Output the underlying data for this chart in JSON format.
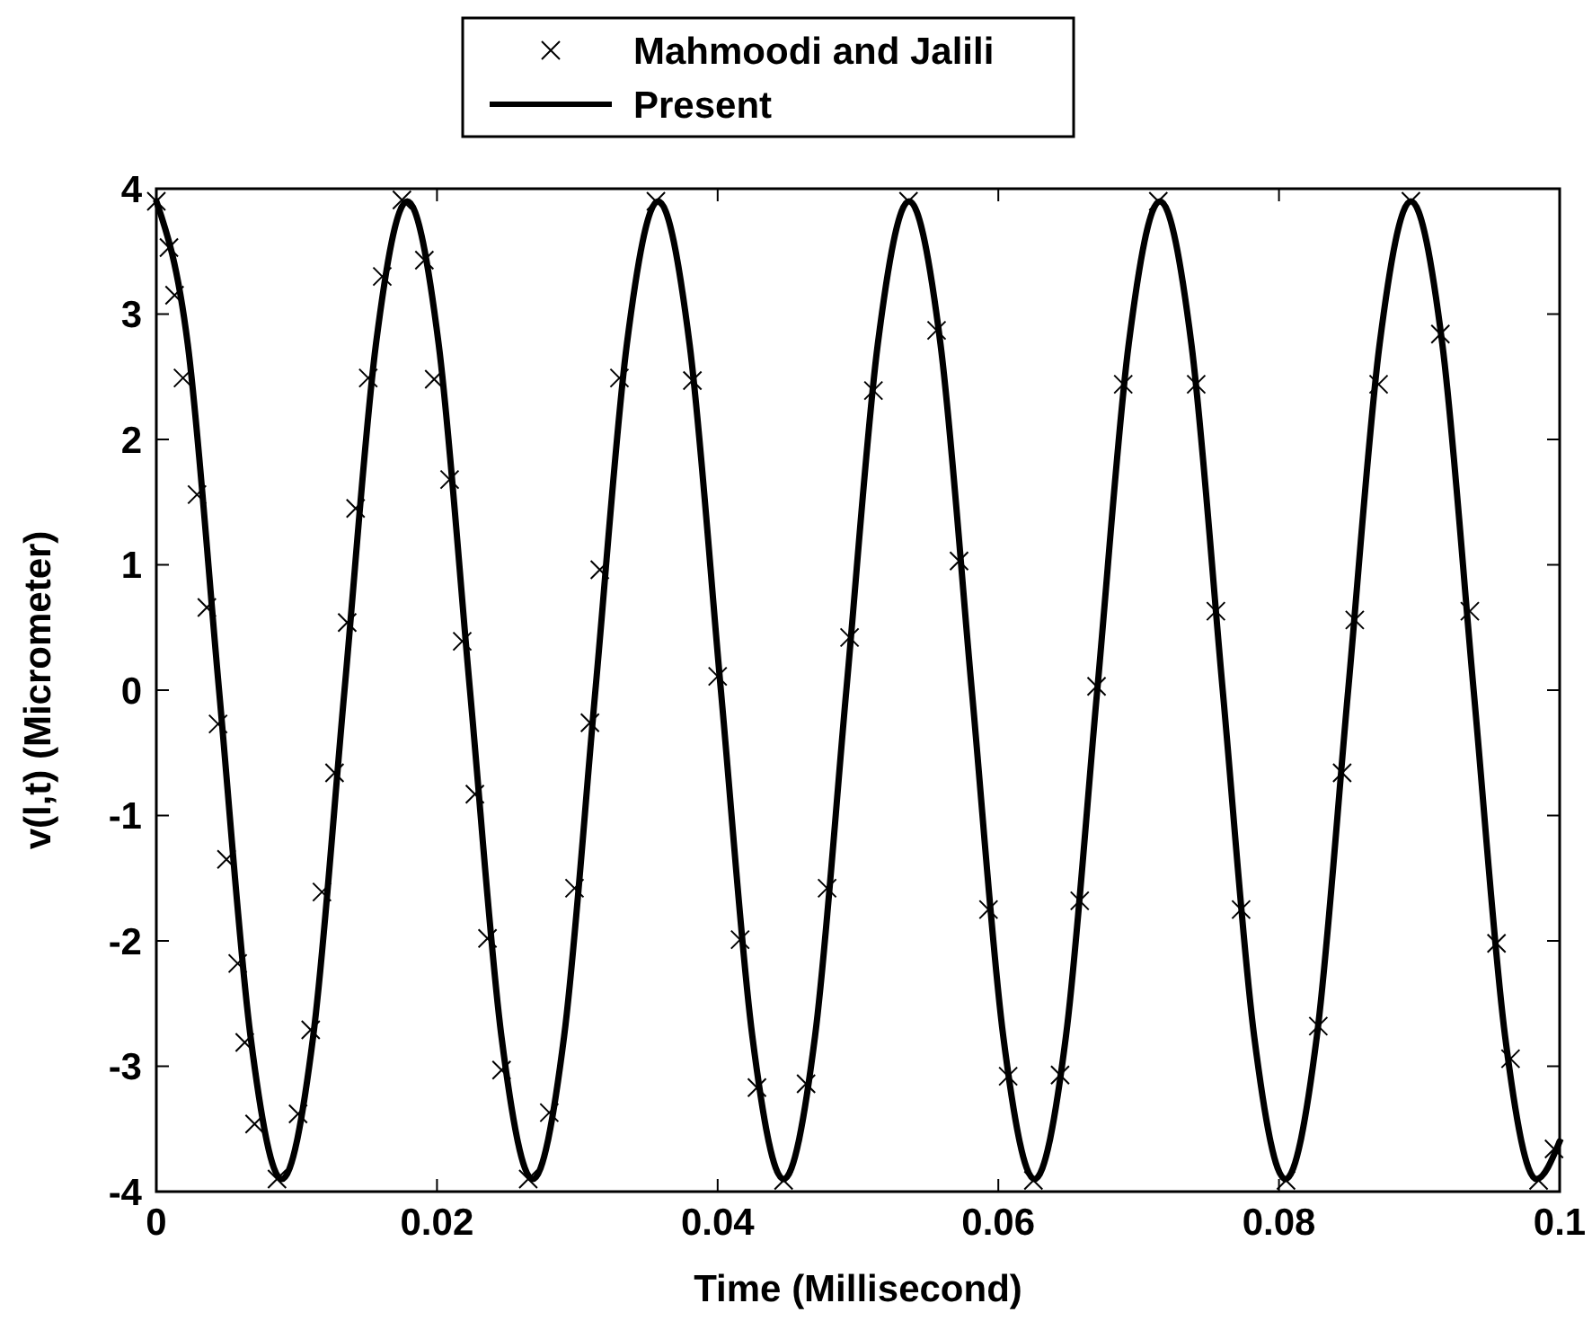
{
  "chart_data": {
    "type": "line",
    "xlabel": "Time (Millisecond)",
    "ylabel": "v(l,t) (Micrometer)",
    "xlim": [
      0,
      0.1
    ],
    "xticks": [
      0,
      0.02,
      0.04,
      0.06,
      0.08,
      0.1
    ],
    "ylim": [
      -4,
      4
    ],
    "yticks": [
      -4,
      -3,
      -2,
      -1,
      0,
      1,
      2,
      3,
      4
    ],
    "grid": false,
    "legend": "top",
    "series": [
      {
        "name": "Mahmoodi and Jalili",
        "type": "scatter",
        "marker": "cross",
        "color": "#000000",
        "x": [
          0,
          0.0009,
          0.0013,
          0.0019,
          0.0029,
          0.0036,
          0.0044,
          0.005,
          0.0058,
          0.0063,
          0.007,
          0.0086,
          0.0101,
          0.011,
          0.0118,
          0.0127,
          0.0136,
          0.0142,
          0.0151,
          0.0161,
          0.0175,
          0.0191,
          0.0198,
          0.0209,
          0.0218,
          0.0227,
          0.0236,
          0.0246,
          0.0265,
          0.028,
          0.0298,
          0.0309,
          0.0316,
          0.033,
          0.0356,
          0.0382,
          0.04,
          0.0416,
          0.0428,
          0.0447,
          0.0463,
          0.0478,
          0.0494,
          0.0511,
          0.0536,
          0.0556,
          0.0572,
          0.0593,
          0.0607,
          0.0625,
          0.0644,
          0.0658,
          0.067,
          0.0689,
          0.0714,
          0.0741,
          0.0755,
          0.0773,
          0.0805,
          0.0828,
          0.0845,
          0.0854,
          0.0871,
          0.0894,
          0.0915,
          0.0936,
          0.0955,
          0.0965,
          0.0985,
          0.0996
        ],
        "values": [
          3.9,
          3.53,
          3.15,
          2.49,
          1.56,
          0.66,
          -0.27,
          -1.35,
          -2.18,
          -2.81,
          -3.46,
          -3.9,
          -3.38,
          -2.71,
          -1.61,
          -0.66,
          0.54,
          1.45,
          2.49,
          3.3,
          3.91,
          3.43,
          2.48,
          1.68,
          0.39,
          -0.83,
          -1.98,
          -3.03,
          -3.9,
          -3.37,
          -1.58,
          -0.26,
          0.96,
          2.49,
          3.9,
          2.47,
          0.11,
          -1.99,
          -3.17,
          -3.91,
          -3.14,
          -1.58,
          0.42,
          2.39,
          3.9,
          2.87,
          1.03,
          -1.75,
          -3.08,
          -3.91,
          -3.07,
          -1.68,
          0.03,
          2.44,
          3.9,
          2.44,
          0.63,
          -1.75,
          -3.91,
          -2.68,
          -0.66,
          0.56,
          2.44,
          3.9,
          2.84,
          0.63,
          -2.02,
          -2.94,
          -3.91,
          -3.66
        ]
      },
      {
        "name": "Present",
        "marker": "none",
        "line_style": "solid",
        "color": "#000000",
        "x": [
          0,
          0.00224,
          0.00447,
          0.00671,
          0.00894,
          0.01118,
          0.01341,
          0.01565,
          0.01788,
          0.02012,
          0.02235,
          0.02459,
          0.02682,
          0.02906,
          0.03129,
          0.03353,
          0.03576,
          0.038,
          0.04023,
          0.04247,
          0.0447,
          0.04694,
          0.04917,
          0.05141,
          0.05364,
          0.05588,
          0.05811,
          0.06035,
          0.06258,
          0.06482,
          0.06705,
          0.06929,
          0.07152,
          0.07376,
          0.07599,
          0.07823,
          0.08046,
          0.0827,
          0.08493,
          0.08717,
          0.0894,
          0.09164,
          0.09387,
          0.09611,
          0.09834,
          0.1
        ],
        "values": [
          3.9,
          2.76,
          0,
          -2.76,
          -3.9,
          -2.76,
          0,
          2.76,
          3.9,
          2.76,
          0,
          -2.76,
          -3.9,
          -2.76,
          0,
          2.76,
          3.9,
          2.76,
          0,
          -2.76,
          -3.9,
          -2.76,
          0,
          2.76,
          3.9,
          2.76,
          0,
          -2.76,
          -3.9,
          -2.76,
          0,
          2.76,
          3.9,
          2.76,
          0,
          -2.76,
          -3.9,
          -2.76,
          0,
          2.76,
          3.9,
          2.76,
          0,
          -2.76,
          -3.9,
          -3.6
        ]
      }
    ]
  }
}
